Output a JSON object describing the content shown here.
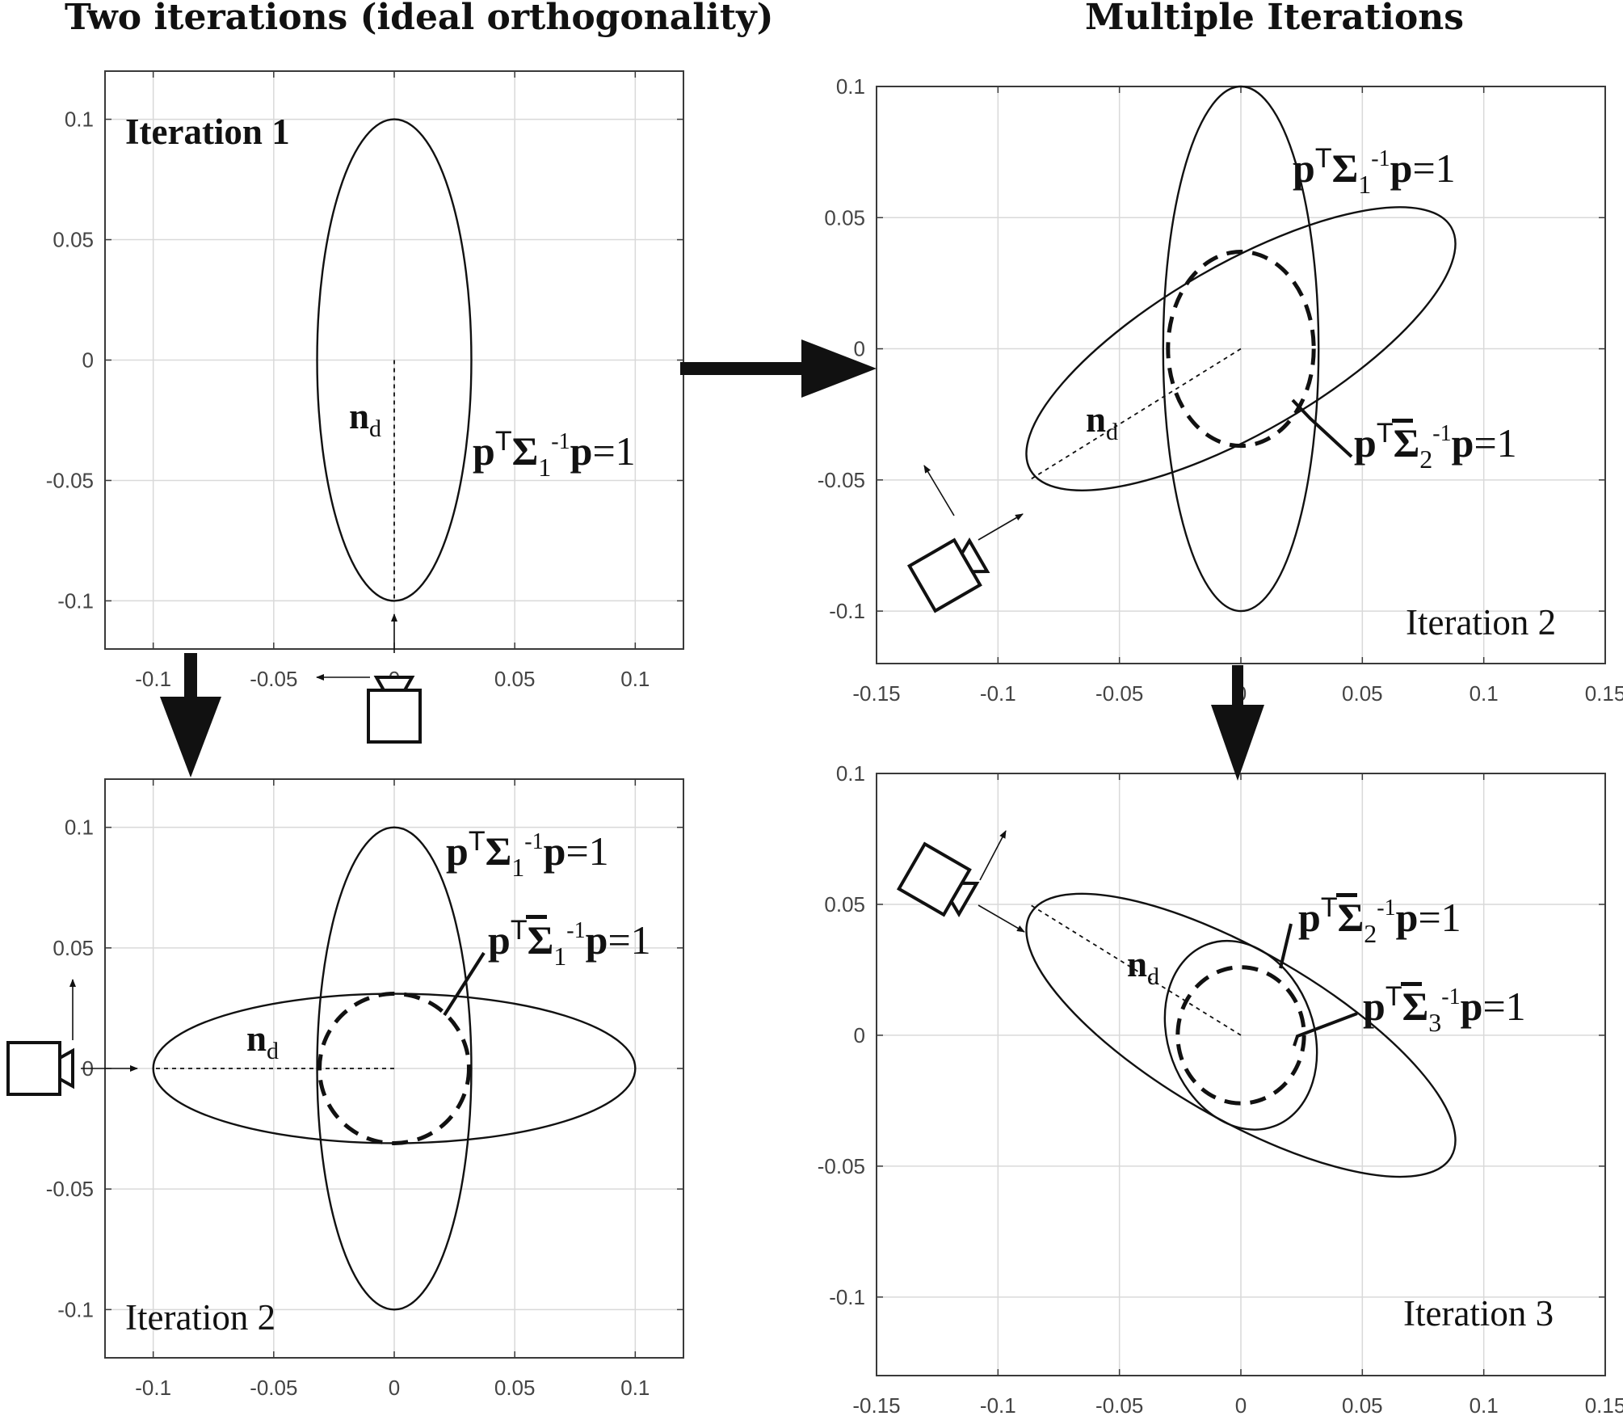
{
  "titles": {
    "left": "Two iterations (ideal orthogonality)",
    "right": "Multiple Iterations"
  },
  "labels": {
    "iter1": "Iteration 1",
    "iter2": "Iteration 2",
    "iter3": "Iteration 3",
    "normal": "n",
    "normal_sub": "d",
    "p": "p",
    "T": "T",
    "sigma": "Σ",
    "inv": "-1",
    "eq1": "=1",
    "sub1": "1",
    "sub2": "2",
    "sub3": "3"
  },
  "colors": {
    "ink": "#111111",
    "grid": "#d9d9d9",
    "axis": "#3a3a3a",
    "tick": "#444444"
  },
  "chart_data": [
    {
      "type": "scatter",
      "title": "",
      "xlim": [
        -0.12,
        0.12
      ],
      "ylim": [
        -0.12,
        0.12
      ],
      "xticks": [
        -0.1,
        -0.05,
        0,
        0.05,
        0.1
      ],
      "yticks": [
        0.1,
        0.05,
        0,
        -0.05,
        -0.1
      ],
      "xtick_labels": [
        "-0.1",
        "-0.05",
        "0",
        "0.05",
        "0.1"
      ],
      "ytick_labels": [
        "0.1",
        "0.05",
        "0",
        "-0.05",
        "-0.1"
      ],
      "grid": true,
      "ellipses": [
        {
          "cx": 0,
          "cy": 0,
          "a": 0.032,
          "b": 0.1,
          "angle_deg": 0,
          "style": "solid"
        }
      ],
      "normal_line": [
        [
          0,
          0
        ],
        [
          0,
          -0.1
        ]
      ],
      "annotation": "Iteration 1"
    },
    {
      "type": "scatter",
      "title": "",
      "xlim": [
        -0.12,
        0.12
      ],
      "ylim": [
        -0.12,
        0.12
      ],
      "xticks": [
        -0.1,
        -0.05,
        0,
        0.05,
        0.1
      ],
      "yticks": [
        0.1,
        0.05,
        0,
        -0.05,
        -0.1
      ],
      "xtick_labels": [
        "-0.1",
        "-0.05",
        "0",
        "0.05",
        "0.1"
      ],
      "ytick_labels": [
        "0.1",
        "0.05",
        "0",
        "-0.05",
        "-0.1"
      ],
      "grid": true,
      "ellipses": [
        {
          "cx": 0,
          "cy": 0,
          "a": 0.032,
          "b": 0.1,
          "angle_deg": 0,
          "style": "solid"
        },
        {
          "cx": 0,
          "cy": 0,
          "a": 0.1,
          "b": 0.031,
          "angle_deg": 0,
          "style": "solid"
        },
        {
          "cx": 0,
          "cy": 0,
          "a": 0.031,
          "b": 0.031,
          "angle_deg": 0,
          "style": "dashed"
        }
      ],
      "normal_line": [
        [
          0,
          0
        ],
        [
          -0.1,
          0
        ]
      ],
      "annotation": "Iteration 2"
    },
    {
      "type": "scatter",
      "title": "",
      "xlim": [
        -0.15,
        0.15
      ],
      "ylim": [
        -0.12,
        0.1
      ],
      "xticks": [
        -0.15,
        -0.1,
        -0.05,
        0,
        0.05,
        0.1,
        0.15
      ],
      "yticks": [
        0.1,
        0.05,
        0,
        -0.05,
        -0.1
      ],
      "xtick_labels": [
        "-0.15",
        "-0.1",
        "-0.05",
        "0",
        "0.05",
        "0.1",
        "0.15"
      ],
      "ytick_labels": [
        "0.1",
        "0.05",
        "0",
        "-0.05",
        "-0.1"
      ],
      "grid": true,
      "ellipses": [
        {
          "cx": 0,
          "cy": 0,
          "a": 0.032,
          "b": 0.1,
          "angle_deg": 0,
          "style": "solid"
        },
        {
          "cx": 0,
          "cy": 0,
          "a": 0.1,
          "b": 0.032,
          "angle_deg": 30,
          "style": "solid"
        },
        {
          "cx": 0,
          "cy": 0,
          "a": 0.03,
          "b": 0.037,
          "angle_deg": 0,
          "style": "dashed"
        }
      ],
      "normal_line": [
        [
          0,
          0
        ],
        [
          -0.087,
          -0.05
        ]
      ],
      "annotation": "Iteration 2"
    },
    {
      "type": "scatter",
      "title": "",
      "xlim": [
        -0.15,
        0.15
      ],
      "ylim": [
        -0.13,
        0.1
      ],
      "xticks": [
        -0.15,
        -0.1,
        -0.05,
        0,
        0.05,
        0.1,
        0.15
      ],
      "yticks": [
        0.1,
        0.05,
        0,
        -0.05,
        -0.1
      ],
      "xtick_labels": [
        "-0.15",
        "-0.1",
        "-0.05",
        "0",
        "0.05",
        "0.1",
        "0.15"
      ],
      "ytick_labels": [
        "0.1",
        "0.05",
        "0",
        "-0.05",
        "-0.1"
      ],
      "grid": true,
      "ellipses": [
        {
          "cx": 0,
          "cy": 0,
          "a": 0.1,
          "b": 0.032,
          "angle_deg": -30,
          "style": "solid"
        },
        {
          "cx": 0,
          "cy": 0,
          "a": 0.03,
          "b": 0.037,
          "angle_deg": 20,
          "style": "solid"
        },
        {
          "cx": 0,
          "cy": 0,
          "a": 0.026,
          "b": 0.026,
          "angle_deg": 0,
          "style": "dashed"
        }
      ],
      "normal_line": [
        [
          0,
          0
        ],
        [
          -0.087,
          0.05
        ]
      ],
      "annotation": "Iteration 3"
    }
  ]
}
